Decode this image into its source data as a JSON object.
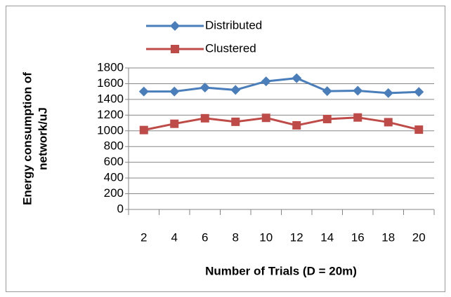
{
  "chart_data": {
    "type": "line",
    "x_label": "Number of Trials (D = 20m)",
    "y_label": [
      "Energy consumption of",
      "network/uJ"
    ],
    "categories": [
      "2",
      "4",
      "6",
      "8",
      "10",
      "12",
      "14",
      "16",
      "18",
      "20"
    ],
    "series": [
      {
        "name": "Distributed",
        "color": "#4a7ebb",
        "marker": "diamond",
        "values": [
          1500,
          1500,
          1550,
          1520,
          1630,
          1670,
          1505,
          1510,
          1480,
          1495
        ]
      },
      {
        "name": "Clustered",
        "color": "#be4b48",
        "marker": "square",
        "values": [
          1010,
          1090,
          1160,
          1115,
          1165,
          1070,
          1150,
          1170,
          1110,
          1015
        ]
      }
    ],
    "ylim": [
      0,
      1800
    ],
    "yticks": [
      0,
      200,
      400,
      600,
      800,
      1000,
      1200,
      1400,
      1600,
      1800
    ],
    "grid": true,
    "legend": "top"
  }
}
